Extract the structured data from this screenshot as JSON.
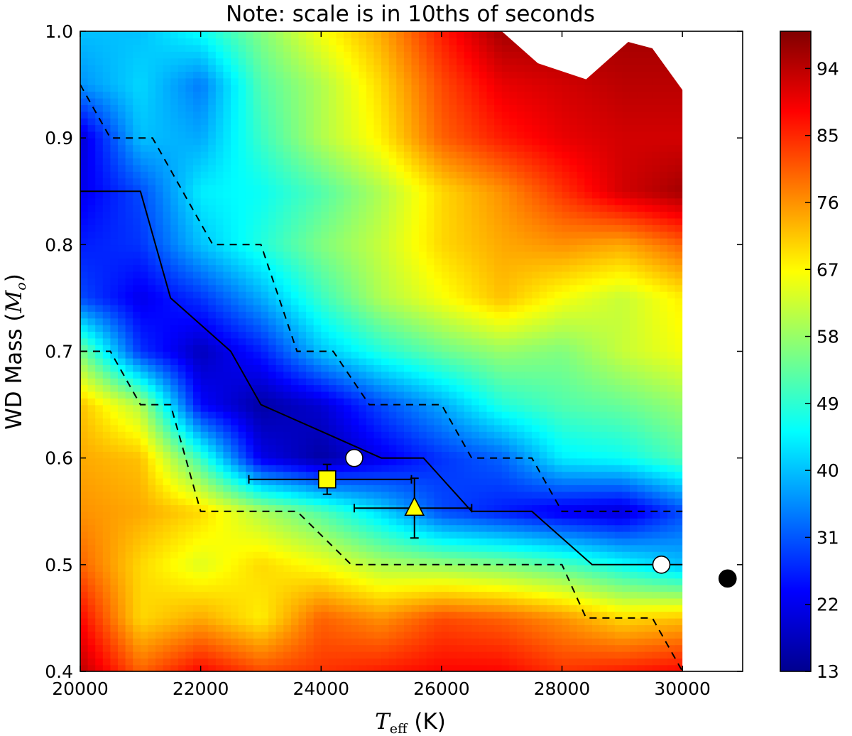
{
  "chart_data": {
    "type": "heatmap",
    "title": "Note: scale is in 10ths of seconds",
    "xlabel": "T_eff (K)",
    "xlabel_main": "T",
    "xlabel_sub": "eff",
    "xlabel_unit": " (K)",
    "ylabel": "WD Mass (M_o)",
    "ylabel_main": "WD Mass (",
    "ylabel_sym": "M",
    "ylabel_sub": "o",
    "ylabel_close": ")",
    "xlim": [
      20000,
      31000
    ],
    "ylim": [
      0.4,
      1.0
    ],
    "x_ticks": [
      20000,
      22000,
      24000,
      26000,
      28000,
      30000
    ],
    "x_tick_labels": [
      "20000",
      "22000",
      "24000",
      "26000",
      "28000",
      "30000"
    ],
    "y_ticks": [
      0.4,
      0.5,
      0.6,
      0.7,
      0.8,
      0.9,
      1.0
    ],
    "y_tick_labels": [
      "0.4",
      "0.5",
      "0.6",
      "0.7",
      "0.8",
      "0.9",
      "1.0"
    ],
    "colorbar": {
      "range": [
        13,
        99
      ],
      "ticks": [
        13,
        22,
        31,
        40,
        49,
        58,
        67,
        76,
        85,
        94
      ],
      "tick_labels": [
        "13",
        "22",
        "31",
        "40",
        "49",
        "58",
        "67",
        "76",
        "85",
        "94"
      ],
      "colormap": "jet"
    },
    "grid": {
      "x": [
        20000,
        21000,
        22000,
        23000,
        24000,
        25000,
        26000,
        27000,
        28000,
        29000,
        30000
      ],
      "y": [
        0.4,
        0.45,
        0.5,
        0.55,
        0.6,
        0.65,
        0.7,
        0.75,
        0.8,
        0.85,
        0.9,
        0.95,
        1.0
      ],
      "values": [
        [
          94,
          80,
          88,
          82,
          84,
          86,
          88,
          88,
          84,
          86,
          88
        ],
        [
          88,
          70,
          74,
          68,
          80,
          76,
          82,
          80,
          76,
          70,
          72
        ],
        [
          80,
          70,
          64,
          70,
          66,
          60,
          58,
          56,
          52,
          46,
          40
        ],
        [
          76,
          74,
          70,
          60,
          52,
          42,
          30,
          26,
          22,
          20,
          30
        ],
        [
          74,
          72,
          50,
          22,
          16,
          22,
          28,
          32,
          44,
          46,
          52
        ],
        [
          72,
          60,
          24,
          16,
          20,
          30,
          38,
          48,
          52,
          54,
          58
        ],
        [
          56,
          28,
          18,
          26,
          40,
          48,
          54,
          58,
          56,
          62,
          66
        ],
        [
          30,
          22,
          28,
          38,
          50,
          60,
          66,
          72,
          66,
          62,
          68
        ],
        [
          26,
          28,
          40,
          48,
          56,
          62,
          70,
          74,
          76,
          74,
          80
        ],
        [
          22,
          30,
          44,
          46,
          52,
          60,
          70,
          76,
          84,
          92,
          96
        ],
        [
          20,
          40,
          38,
          50,
          60,
          68,
          80,
          86,
          90,
          92,
          92
        ],
        [
          36,
          42,
          34,
          52,
          60,
          70,
          82,
          90,
          92,
          94,
          94
        ],
        [
          40,
          40,
          46,
          56,
          66,
          74,
          86,
          96,
          96,
          null,
          null
        ]
      ],
      "masked_top_right": [
        [
          27000,
          1.0
        ],
        [
          27600,
          0.97
        ],
        [
          28400,
          0.955
        ],
        [
          29100,
          0.99
        ],
        [
          29500,
          0.984
        ],
        [
          30000,
          0.945
        ]
      ]
    },
    "lines": [
      {
        "style": "solid",
        "x": [
          20000,
          21000,
          21500,
          22500,
          23000,
          24000,
          25000,
          25700,
          26500,
          27500,
          28500,
          30000
        ],
        "y": [
          0.85,
          0.85,
          0.75,
          0.7,
          0.65,
          0.625,
          0.6,
          0.6,
          0.55,
          0.55,
          0.5,
          0.5
        ]
      },
      {
        "style": "dashed",
        "x": [
          20000,
          20500,
          21200,
          22200,
          23000,
          23600,
          24200,
          24800,
          26000,
          26500,
          27500,
          28000,
          30000
        ],
        "y": [
          0.95,
          0.9,
          0.9,
          0.8,
          0.8,
          0.7,
          0.7,
          0.65,
          0.65,
          0.6,
          0.6,
          0.55,
          0.55
        ]
      },
      {
        "style": "dashed",
        "x": [
          20000,
          20500,
          21000,
          21500,
          22000,
          23600,
          24500,
          26500,
          28000,
          28400,
          29500,
          30000
        ],
        "y": [
          0.7,
          0.7,
          0.65,
          0.65,
          0.55,
          0.55,
          0.5,
          0.5,
          0.5,
          0.45,
          0.45,
          0.4
        ]
      }
    ],
    "points": [
      {
        "marker": "circle",
        "fill": "#ffffff",
        "x": 24550,
        "y": 0.6
      },
      {
        "marker": "circle",
        "fill": "#ffffff",
        "x": 29650,
        "y": 0.5
      },
      {
        "marker": "circle",
        "fill": "#000000",
        "x": 30750,
        "y": 0.487
      },
      {
        "marker": "square",
        "fill": "#ffff00",
        "x": 24100,
        "y": 0.58,
        "xerr": [
          22800,
          25500
        ],
        "yerr": [
          0.566,
          0.594
        ]
      },
      {
        "marker": "triangle",
        "fill": "#ffff00",
        "x": 25550,
        "y": 0.553,
        "xerr": [
          24550,
          26500
        ],
        "yerr": [
          0.525,
          0.581
        ]
      }
    ]
  }
}
